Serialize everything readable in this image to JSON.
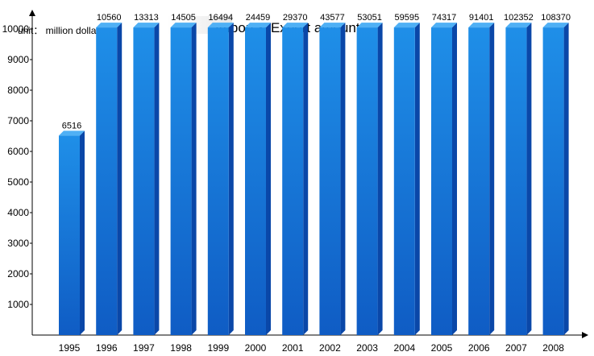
{
  "chart_data": {
    "type": "bar",
    "title": "Import & Export amount",
    "unit_label": "unit： million dollars",
    "xlabel": "",
    "ylabel": "",
    "categories": [
      "1995",
      "1996",
      "1997",
      "1998",
      "1999",
      "2000",
      "2001",
      "2002",
      "2003",
      "2004",
      "2005",
      "2006",
      "2007",
      "2008"
    ],
    "values": [
      6516,
      10560,
      13313,
      14505,
      16494,
      24459,
      29370,
      43577,
      53051,
      59595,
      74317,
      91401,
      102352,
      108370
    ],
    "ylim": [
      0,
      10000
    ],
    "yticks": [
      1000,
      2000,
      3000,
      4000,
      5000,
      6000,
      7000,
      8000,
      9000,
      10000
    ],
    "grid": false,
    "legend": "none",
    "colors": {
      "bar_top": "#1f8fe8",
      "bar_bottom": "#0f5cc4",
      "bar_side": "#0a47a8",
      "bar_cap": "#4fb0f5",
      "axis": "#000000"
    }
  }
}
